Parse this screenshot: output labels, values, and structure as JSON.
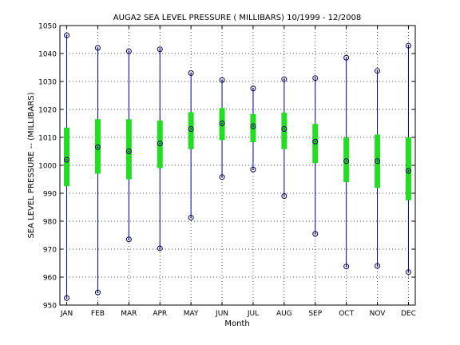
{
  "chart_data": {
    "type": "box",
    "title": "AUGA2  SEA LEVEL PRESSURE ( MILLIBARS) 10/1999 - 12/2008",
    "xlabel": "Month",
    "ylabel": "SEA LEVEL PRESSURE -- (MILLIBARS)",
    "ylim": [
      950,
      1050
    ],
    "yticks": [
      950,
      960,
      970,
      980,
      990,
      1000,
      1010,
      1020,
      1030,
      1040,
      1050
    ],
    "grid": true,
    "categories": [
      "JAN",
      "FEB",
      "MAR",
      "APR",
      "MAY",
      "JUN",
      "JUL",
      "AUG",
      "SEP",
      "OCT",
      "NOV",
      "DEC"
    ],
    "max": [
      1046.5,
      1042.0,
      1040.8,
      1041.5,
      1033.0,
      1030.5,
      1027.5,
      1030.8,
      1031.2,
      1038.5,
      1033.8,
      1042.8
    ],
    "min": [
      952.5,
      954.5,
      973.5,
      970.3,
      981.3,
      995.8,
      998.5,
      989.0,
      975.5,
      963.8,
      964.0,
      961.8
    ],
    "median": [
      1002.0,
      1006.5,
      1005.0,
      1007.8,
      1013.0,
      1015.0,
      1014.0,
      1013.0,
      1008.5,
      1001.5,
      1001.5,
      998.0
    ],
    "q1": [
      992.5,
      997.0,
      995.0,
      999.0,
      1005.8,
      1009.0,
      1008.3,
      1005.8,
      1000.8,
      994.0,
      992.0,
      987.5
    ],
    "q3": [
      1013.5,
      1016.5,
      1016.5,
      1016.0,
      1019.0,
      1020.5,
      1018.3,
      1018.8,
      1014.8,
      1010.0,
      1011.0,
      1010.0
    ],
    "colors": {
      "whisker": "#0000b0",
      "box": "#22dd22",
      "marker": "#000055",
      "axis": "#000000",
      "grid": "#000000"
    }
  }
}
